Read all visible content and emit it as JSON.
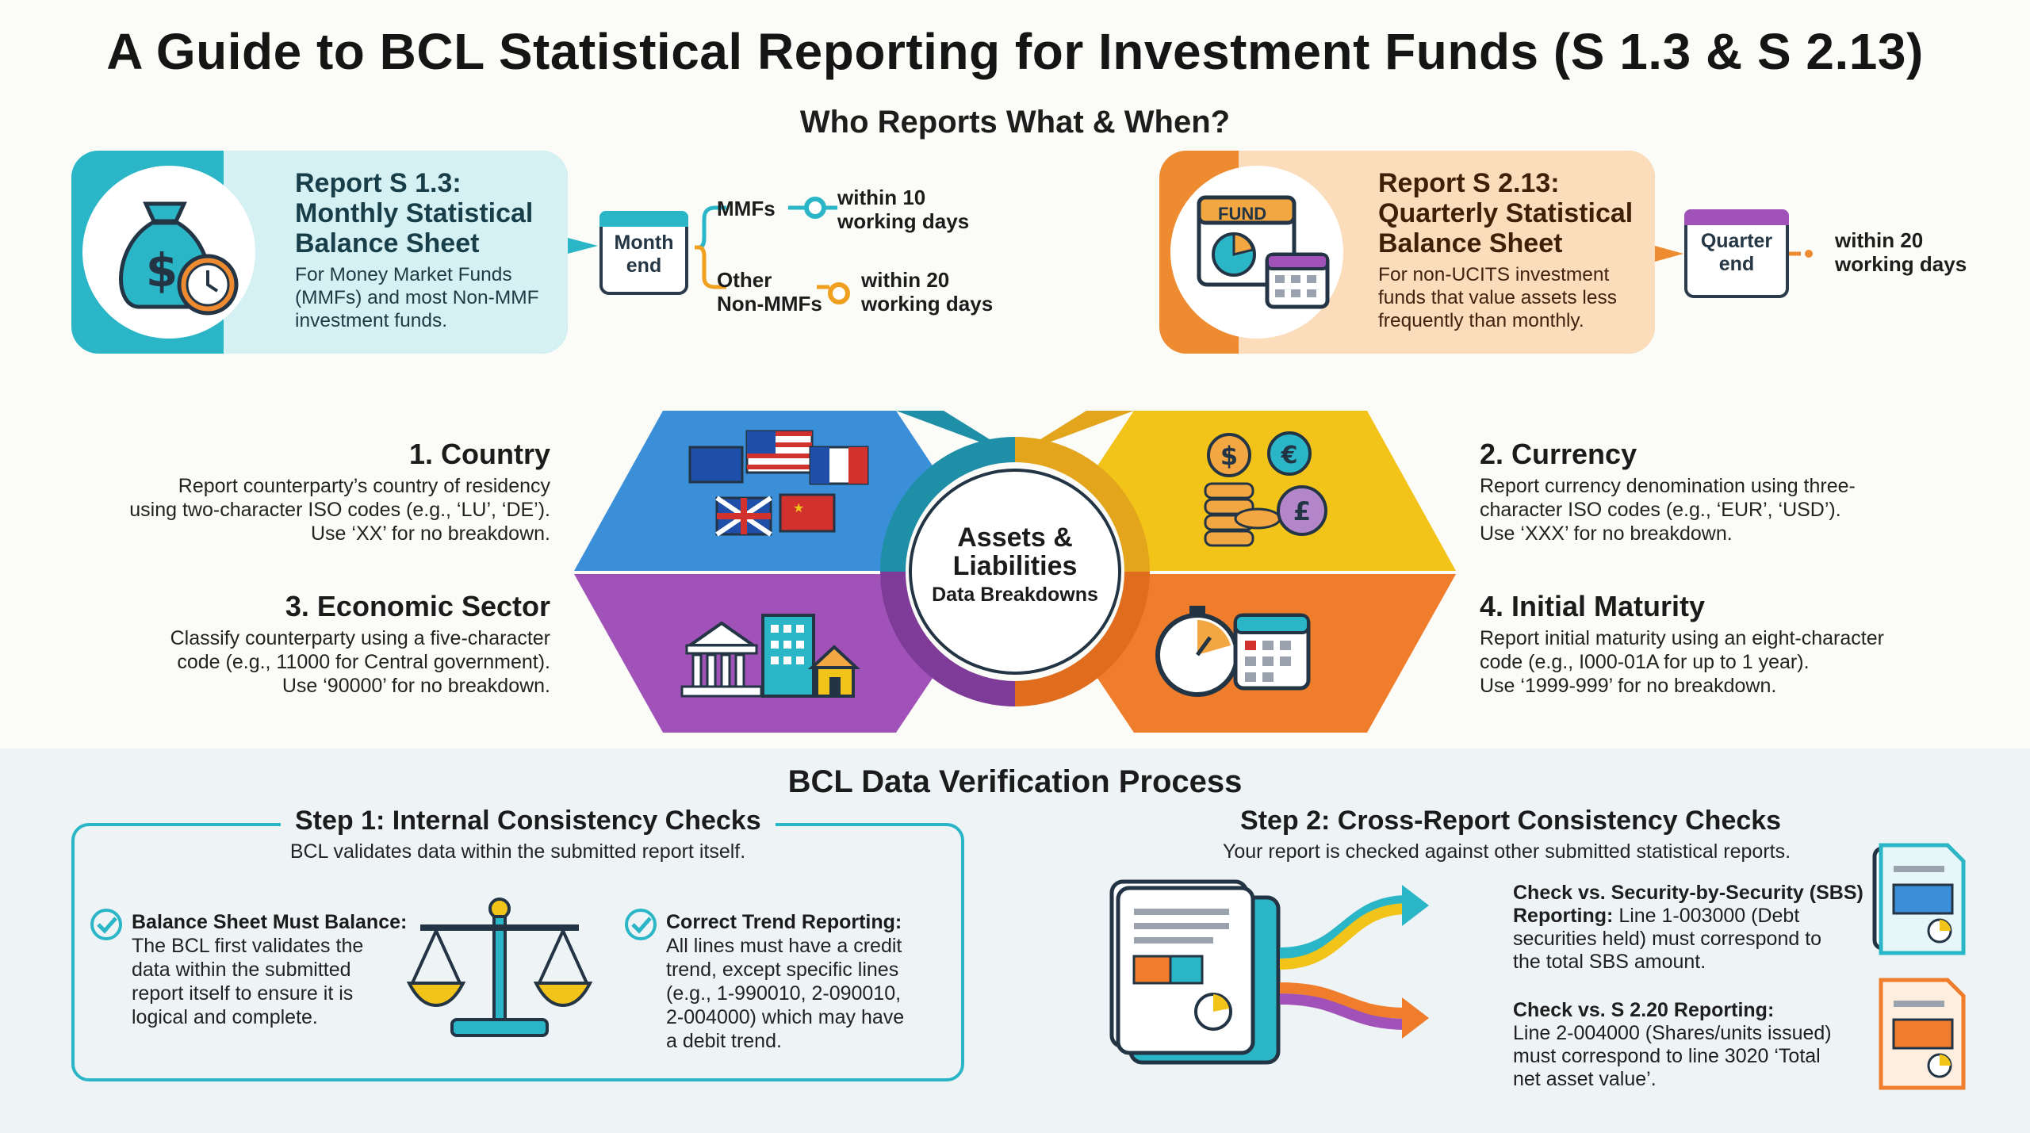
{
  "title": "A Guide to BCL Statistical Reporting for Investment Funds (S 1.3 & S 2.13)",
  "subtitle": "Who Reports What & When?",
  "report_s13": {
    "heading_lines": [
      "Report S 1.3:",
      "Monthly Statistical",
      "Balance Sheet"
    ],
    "description_lines": [
      "For Money Market Funds",
      "(MMFs) and most Non-MMF",
      "investment funds."
    ],
    "calendar_lines": [
      "Month",
      "end"
    ],
    "branch1_label": "MMFs",
    "branch1_deadline_lines": [
      "within 10",
      "working days"
    ],
    "branch2_label_lines": [
      "Other",
      "Non-MMFs"
    ],
    "branch2_deadline_lines": [
      "within 20",
      "working days"
    ],
    "color": "#2bb6c8"
  },
  "report_s213": {
    "heading_lines": [
      "Report S 2.13:",
      "Quarterly Statistical",
      "Balance Sheet"
    ],
    "description_lines": [
      "For non-UCITS investment",
      "funds that value assets less",
      "frequently than monthly."
    ],
    "icon_label": "FUND",
    "calendar_lines": [
      "Quarter",
      "end"
    ],
    "deadline_lines": [
      "within 20",
      "working days"
    ],
    "color": "#ee8a30"
  },
  "center": {
    "title_lines": [
      "Assets &",
      "Liabilities"
    ],
    "subtitle": "Data Breakdowns"
  },
  "categories": {
    "country": {
      "heading": "1. Country",
      "lines": [
        "Report counterparty’s country of residency",
        "using two-character ISO codes (e.g., ‘LU’, ‘DE’).",
        "Use ‘XX’ for no breakdown."
      ],
      "color": "#3b8fd8"
    },
    "currency": {
      "heading": "2. Currency",
      "lines": [
        "Report currency denomination using three-",
        "character ISO codes (e.g., ‘EUR’, ‘USD’).",
        "Use ‘XXX’ for no breakdown."
      ],
      "color": "#f2c318"
    },
    "sector": {
      "heading": "3. Economic Sector",
      "lines": [
        "Classify counterparty using a five-character",
        "code (e.g., 11000 for Central government).",
        "Use ‘90000’ for no breakdown."
      ],
      "color": "#a152b8"
    },
    "maturity": {
      "heading": "4. Initial Maturity",
      "lines": [
        "Report initial maturity using an eight-character",
        "code (e.g., I000-01A for up to 1 year).",
        "Use ‘1999-999’ for no breakdown."
      ],
      "color": "#ef7d2b"
    }
  },
  "verification": {
    "title": "BCL Data Verification Process",
    "step1": {
      "title": "Step 1: Internal Consistency Checks",
      "subtitle": "BCL validates data within the submitted report itself.",
      "check1_title": "Balance Sheet Must Balance:",
      "check1_lines": [
        "The BCL first validates the",
        "data within the submitted",
        "report itself to ensure it is",
        "logical and complete."
      ],
      "check2_title": "Correct Trend Reporting:",
      "check2_lines": [
        "All lines must have a credit",
        "trend, except specific lines",
        "(e.g., 1-990010, 2-090010,",
        "2-004000) which may have",
        "a debit trend."
      ]
    },
    "step2": {
      "title": "Step 2: Cross-Report Consistency Checks",
      "subtitle": "Your report is checked against other submitted statistical reports.",
      "check1_lead": "Check vs. Security-by-Security (SBS)",
      "check1_lines": [
        "Reporting:",
        " Line 1-003000 (Debt",
        "securities held) must correspond to",
        "the total SBS amount."
      ],
      "check2_lead": "Check vs. S 2.20 Reporting:",
      "check2_lines": [
        "Line 2-004000 (Shares/units issued)",
        "must correspond to line 3020 ‘Total",
        "net asset value’."
      ]
    }
  }
}
